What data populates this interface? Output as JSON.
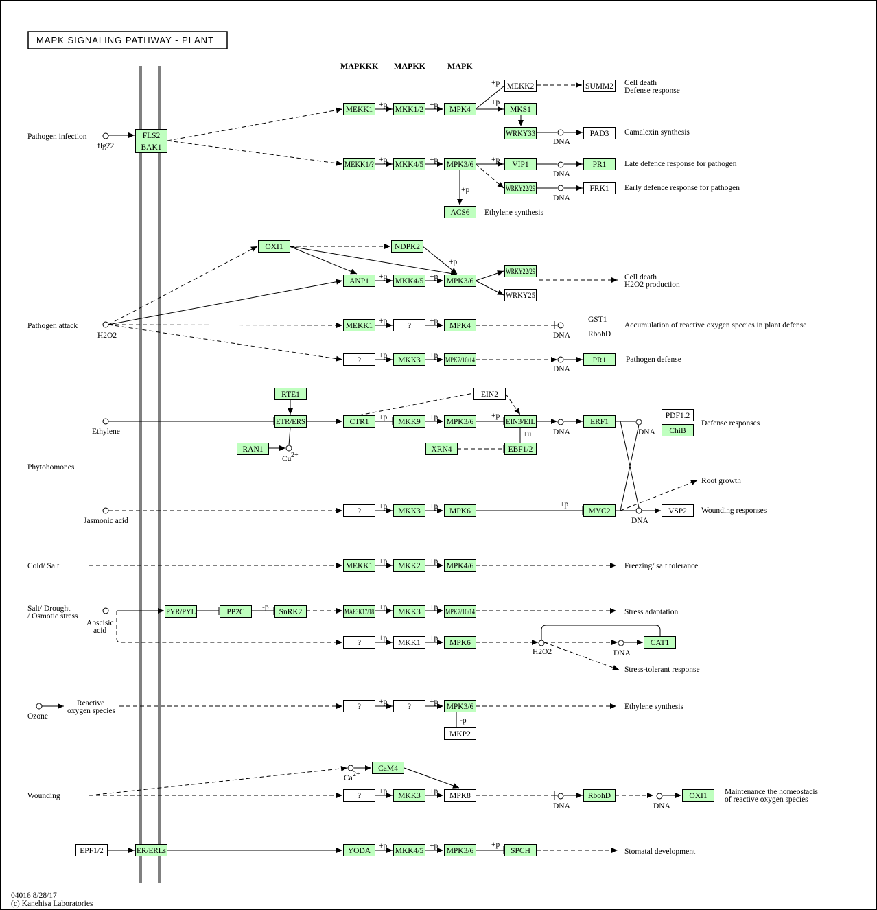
{
  "title": "MAPK SIGNALING PATHWAY - PLANT",
  "footer": {
    "line1": "04016 8/28/17",
    "line2": "(c) Kanehisa Laboratories"
  },
  "colors": {
    "gene_fill": "#bfffbf",
    "plain_fill": "#ffffff",
    "membrane": "#808080"
  },
  "headers": {
    "mapkkk": "MAPKKK",
    "mapkk": "MAPKK",
    "mapk": "MAPK"
  },
  "nodes": {
    "fls2": "FLS2",
    "bak1": "BAK1",
    "mekk1_a": "MEKK1",
    "mkk12": "MKK1/2",
    "mpk4_a": "MPK4",
    "mekk2": "MEKK2",
    "summ2": "SUMM2",
    "mks1": "MKS1",
    "wrky33": "WRKY33",
    "pad3": "PAD3",
    "mekk1_b": "MEKK1/?",
    "mkk45_a": "MKK4/5",
    "mpk36_a": "MPK3/6",
    "vip1": "VIP1",
    "pr1_a": "PR1",
    "wrky229": "WRKY22/29",
    "frk1": "FRK1",
    "acs6": "ACS6",
    "oxi1_a": "OXI1",
    "ndpk2": "NDPK2",
    "anp1": "ANP1",
    "mkk45_b": "MKK4/5",
    "mpk36_b": "MPK3/6",
    "wrky2229": "WRKY22/29",
    "wrky25": "WRKY25",
    "mekk1_c": "MEKK1",
    "q1": "?",
    "mpk4_b": "MPK4",
    "q2": "?",
    "mkk3_a": "MKK3",
    "mpk71014_a": "MPK7/10/14",
    "pr1_b": "PR1",
    "rte1": "RTE1",
    "etr": "ETR/ERS",
    "ran1": "RAN1",
    "ctr1": "CTR1",
    "mkk9": "MKK9",
    "mpk36_c": "MPK3/6",
    "ein2": "EIN2",
    "ein3": "EIN3/EIL",
    "ebf12": "EBF1/2",
    "xrn4": "XRN4",
    "erf1": "ERF1",
    "pdf12": "PDF1.2",
    "chib": "ChiB",
    "q3": "?",
    "mkk3_b": "MKK3",
    "mpk6_a": "MPK6",
    "myc2": "MYC2",
    "vsp2": "VSP2",
    "mekk1_d": "MEKK1",
    "mkk2": "MKK2",
    "mpk46": "MPK4/6",
    "pyr": "PYR/PYL",
    "pp2c": "PP2C",
    "snrk2": "SnRK2",
    "map3k178": "MAP3K17/18",
    "mkk3_c": "MKK3",
    "mpk71014_b": "MPK7/10/14",
    "q4": "?",
    "mkk1": "MKK1",
    "mpk6_b": "MPK6",
    "cat1": "CAT1",
    "q5": "?",
    "q6": "?",
    "mpk36_d": "MPK3/6",
    "mkp2": "MKP2",
    "cam4": "CaM4",
    "q7": "?",
    "mkk3_d": "MKK3",
    "mpk8": "MPK8",
    "rbohd": "RbohD",
    "oxi1_b": "OXI1",
    "epf12": "EPF1/2",
    "erl": "ER/ERLs",
    "yoda": "YODA",
    "mkk45_c": "MKK4/5",
    "mpk36_e": "MPK3/6",
    "spch": "SPCH"
  },
  "labels": {
    "pathogen_infection": "Pathogen infection",
    "flg22": "flg22",
    "pathogen_attack": "Pathogen attack",
    "h2o2_a": "H2O2",
    "ethylene": "Ethylene",
    "phytohormones": "Phytohomones",
    "jasmonic": "Jasmonic acid",
    "cold_salt": "Cold/ Salt",
    "salt1": "Salt/ Drought",
    "salt2": "/ Osmotic stress",
    "abscisic1": "Abscisic",
    "abscisic2": "acid",
    "ozone": "Ozone",
    "ros1": "Reactive",
    "ros2": "oxygen species",
    "wounding": "Wounding",
    "cell_death_1": "Cell death",
    "defense_response": "Defense response",
    "camalexin": "Camalexin synthesis",
    "late_defence": "Late defence response for pathogen",
    "early_defence": "Early defence response for pathogen",
    "ethylene_synth_1": "Ethylene synthesis",
    "cell_death_2": "Cell death",
    "h2o2_prod": "H2O2 production",
    "gst1": "GST1",
    "rbohd_t": "RbohD",
    "ros_accum": "Accumulation of reactive oxygen species in plant defense",
    "pathogen_defense": "Pathogen defense",
    "defense_responses": "Defense responses",
    "root_growth": "Root growth",
    "wounding_resp": "Wounding responses",
    "freezing": "Freezing/ salt tolerance",
    "stress_adapt": "Stress adaptation",
    "h2o2_b": "H2O2",
    "stress_tol": "Stress-tolerant response",
    "ethylene_synth_2": "Ethylene synthesis",
    "ca2": "Ca",
    "ca2sup": "2+",
    "cu2": "Cu",
    "cu2sup": "2+",
    "homeo1": "Maintenance the homeostacis",
    "homeo2": "of reactive oxygen species",
    "stomatal": "Stomatal development",
    "dna": "DNA",
    "plus_p": "+p",
    "minus_p": "-p",
    "plus_u": "+u"
  }
}
